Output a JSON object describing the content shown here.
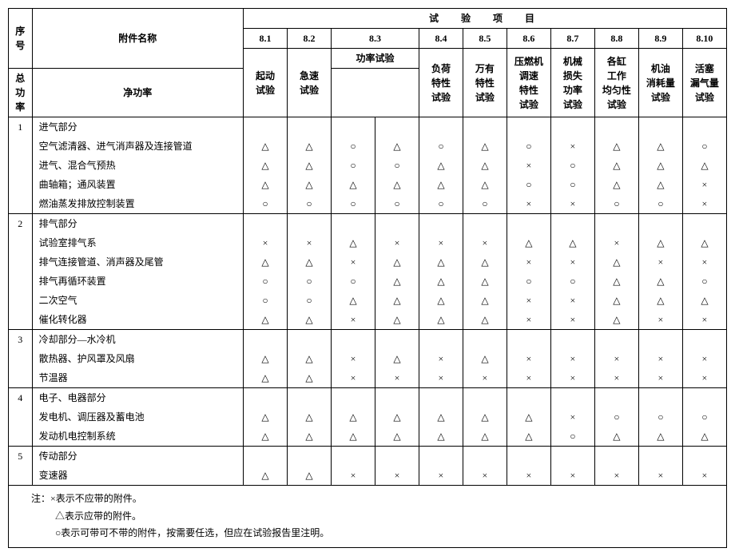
{
  "symbols": {
    "x": "×",
    "tri": "△",
    "circ": "○"
  },
  "header": {
    "seq": "序号",
    "name": "附件名称",
    "title": "试　验　项　目",
    "cols": {
      "c1": {
        "num": "8.1",
        "label": "起动\n试验"
      },
      "c2": {
        "num": "8.2",
        "label": "急速\n试验"
      },
      "c3": {
        "num": "8.3",
        "label": "功率试验",
        "sub1": "总功率",
        "sub2": "净功率"
      },
      "c4": {
        "num": "8.4",
        "label": "负荷\n特性\n试验"
      },
      "c5": {
        "num": "8.5",
        "label": "万有\n特性\n试验"
      },
      "c6": {
        "num": "8.6",
        "label": "压燃机\n调速\n特性\n试验"
      },
      "c7": {
        "num": "8.7",
        "label": "机械\n损失\n功率\n试验"
      },
      "c8": {
        "num": "8.8",
        "label": "各缸\n工作\n均匀性\n试验"
      },
      "c9": {
        "num": "8.9",
        "label": "机油\n消耗量\n试验"
      },
      "c10": {
        "num": "8.10",
        "label": "活塞\n漏气量\n试验"
      }
    }
  },
  "groups": [
    {
      "seq": "1",
      "title": "进气部分",
      "rows": [
        {
          "name": "空气滤清器、进气消声器及连接管道",
          "v": [
            "△",
            "△",
            "○",
            "△",
            "○",
            "△",
            "○",
            "×",
            "△",
            "△",
            "○"
          ]
        },
        {
          "name": "进气、混合气预热",
          "v": [
            "△",
            "△",
            "○",
            "○",
            "△",
            "△",
            "×",
            "○",
            "△",
            "△",
            "△"
          ]
        },
        {
          "name": "曲轴箱；通风装置",
          "v": [
            "△",
            "△",
            "△",
            "△",
            "△",
            "△",
            "○",
            "○",
            "△",
            "△",
            "×"
          ]
        },
        {
          "name": "燃油蒸发排放控制装置",
          "v": [
            "○",
            "○",
            "○",
            "○",
            "○",
            "○",
            "×",
            "×",
            "○",
            "○",
            "×"
          ]
        }
      ]
    },
    {
      "seq": "2",
      "title": "排气部分",
      "rows": [
        {
          "name": "试验室排气系",
          "v": [
            "×",
            "×",
            "△",
            "×",
            "×",
            "×",
            "△",
            "△",
            "×",
            "△",
            "△"
          ]
        },
        {
          "name": "排气连接管道、消声器及尾管",
          "v": [
            "△",
            "△",
            "×",
            "△",
            "△",
            "△",
            "×",
            "×",
            "△",
            "×",
            "×"
          ]
        },
        {
          "name": "排气再循环装置",
          "v": [
            "○",
            "○",
            "○",
            "△",
            "△",
            "△",
            "○",
            "○",
            "△",
            "△",
            "○"
          ]
        },
        {
          "name": "二次空气",
          "v": [
            "○",
            "○",
            "△",
            "△",
            "△",
            "△",
            "×",
            "×",
            "△",
            "△",
            "△"
          ]
        },
        {
          "name": "催化转化器",
          "v": [
            "△",
            "△",
            "×",
            "△",
            "△",
            "△",
            "×",
            "×",
            "△",
            "×",
            "×"
          ]
        }
      ]
    },
    {
      "seq": "3",
      "title": "冷却部分—水冷机",
      "rows": [
        {
          "name": "散热器、护风罩及风扇",
          "v": [
            "△",
            "△",
            "×",
            "△",
            "×",
            "△",
            "×",
            "×",
            "×",
            "×",
            "×"
          ]
        },
        {
          "name": "节温器",
          "v": [
            "△",
            "△",
            "×",
            "×",
            "×",
            "×",
            "×",
            "×",
            "×",
            "×",
            "×"
          ]
        }
      ]
    },
    {
      "seq": "4",
      "title": "电子、电器部分",
      "rows": [
        {
          "name": "发电机、调压器及蓄电池",
          "v": [
            "△",
            "△",
            "△",
            "△",
            "△",
            "△",
            "△",
            "×",
            "○",
            "○",
            "○"
          ]
        },
        {
          "name": "发动机电控制系统",
          "v": [
            "△",
            "△",
            "△",
            "△",
            "△",
            "△",
            "△",
            "○",
            "△",
            "△",
            "△"
          ]
        }
      ]
    },
    {
      "seq": "5",
      "title": "传动部分",
      "rows": [
        {
          "name": "变速器",
          "v": [
            "△",
            "△",
            "×",
            "×",
            "×",
            "×",
            "×",
            "×",
            "×",
            "×",
            "×"
          ]
        }
      ]
    }
  ],
  "notes": {
    "l1": "注：×表示不应带的附件。",
    "l2": "△表示应带的附件。",
    "l3": "○表示可带可不带的附件，按需要任选，但应在试验报告里注明。"
  }
}
